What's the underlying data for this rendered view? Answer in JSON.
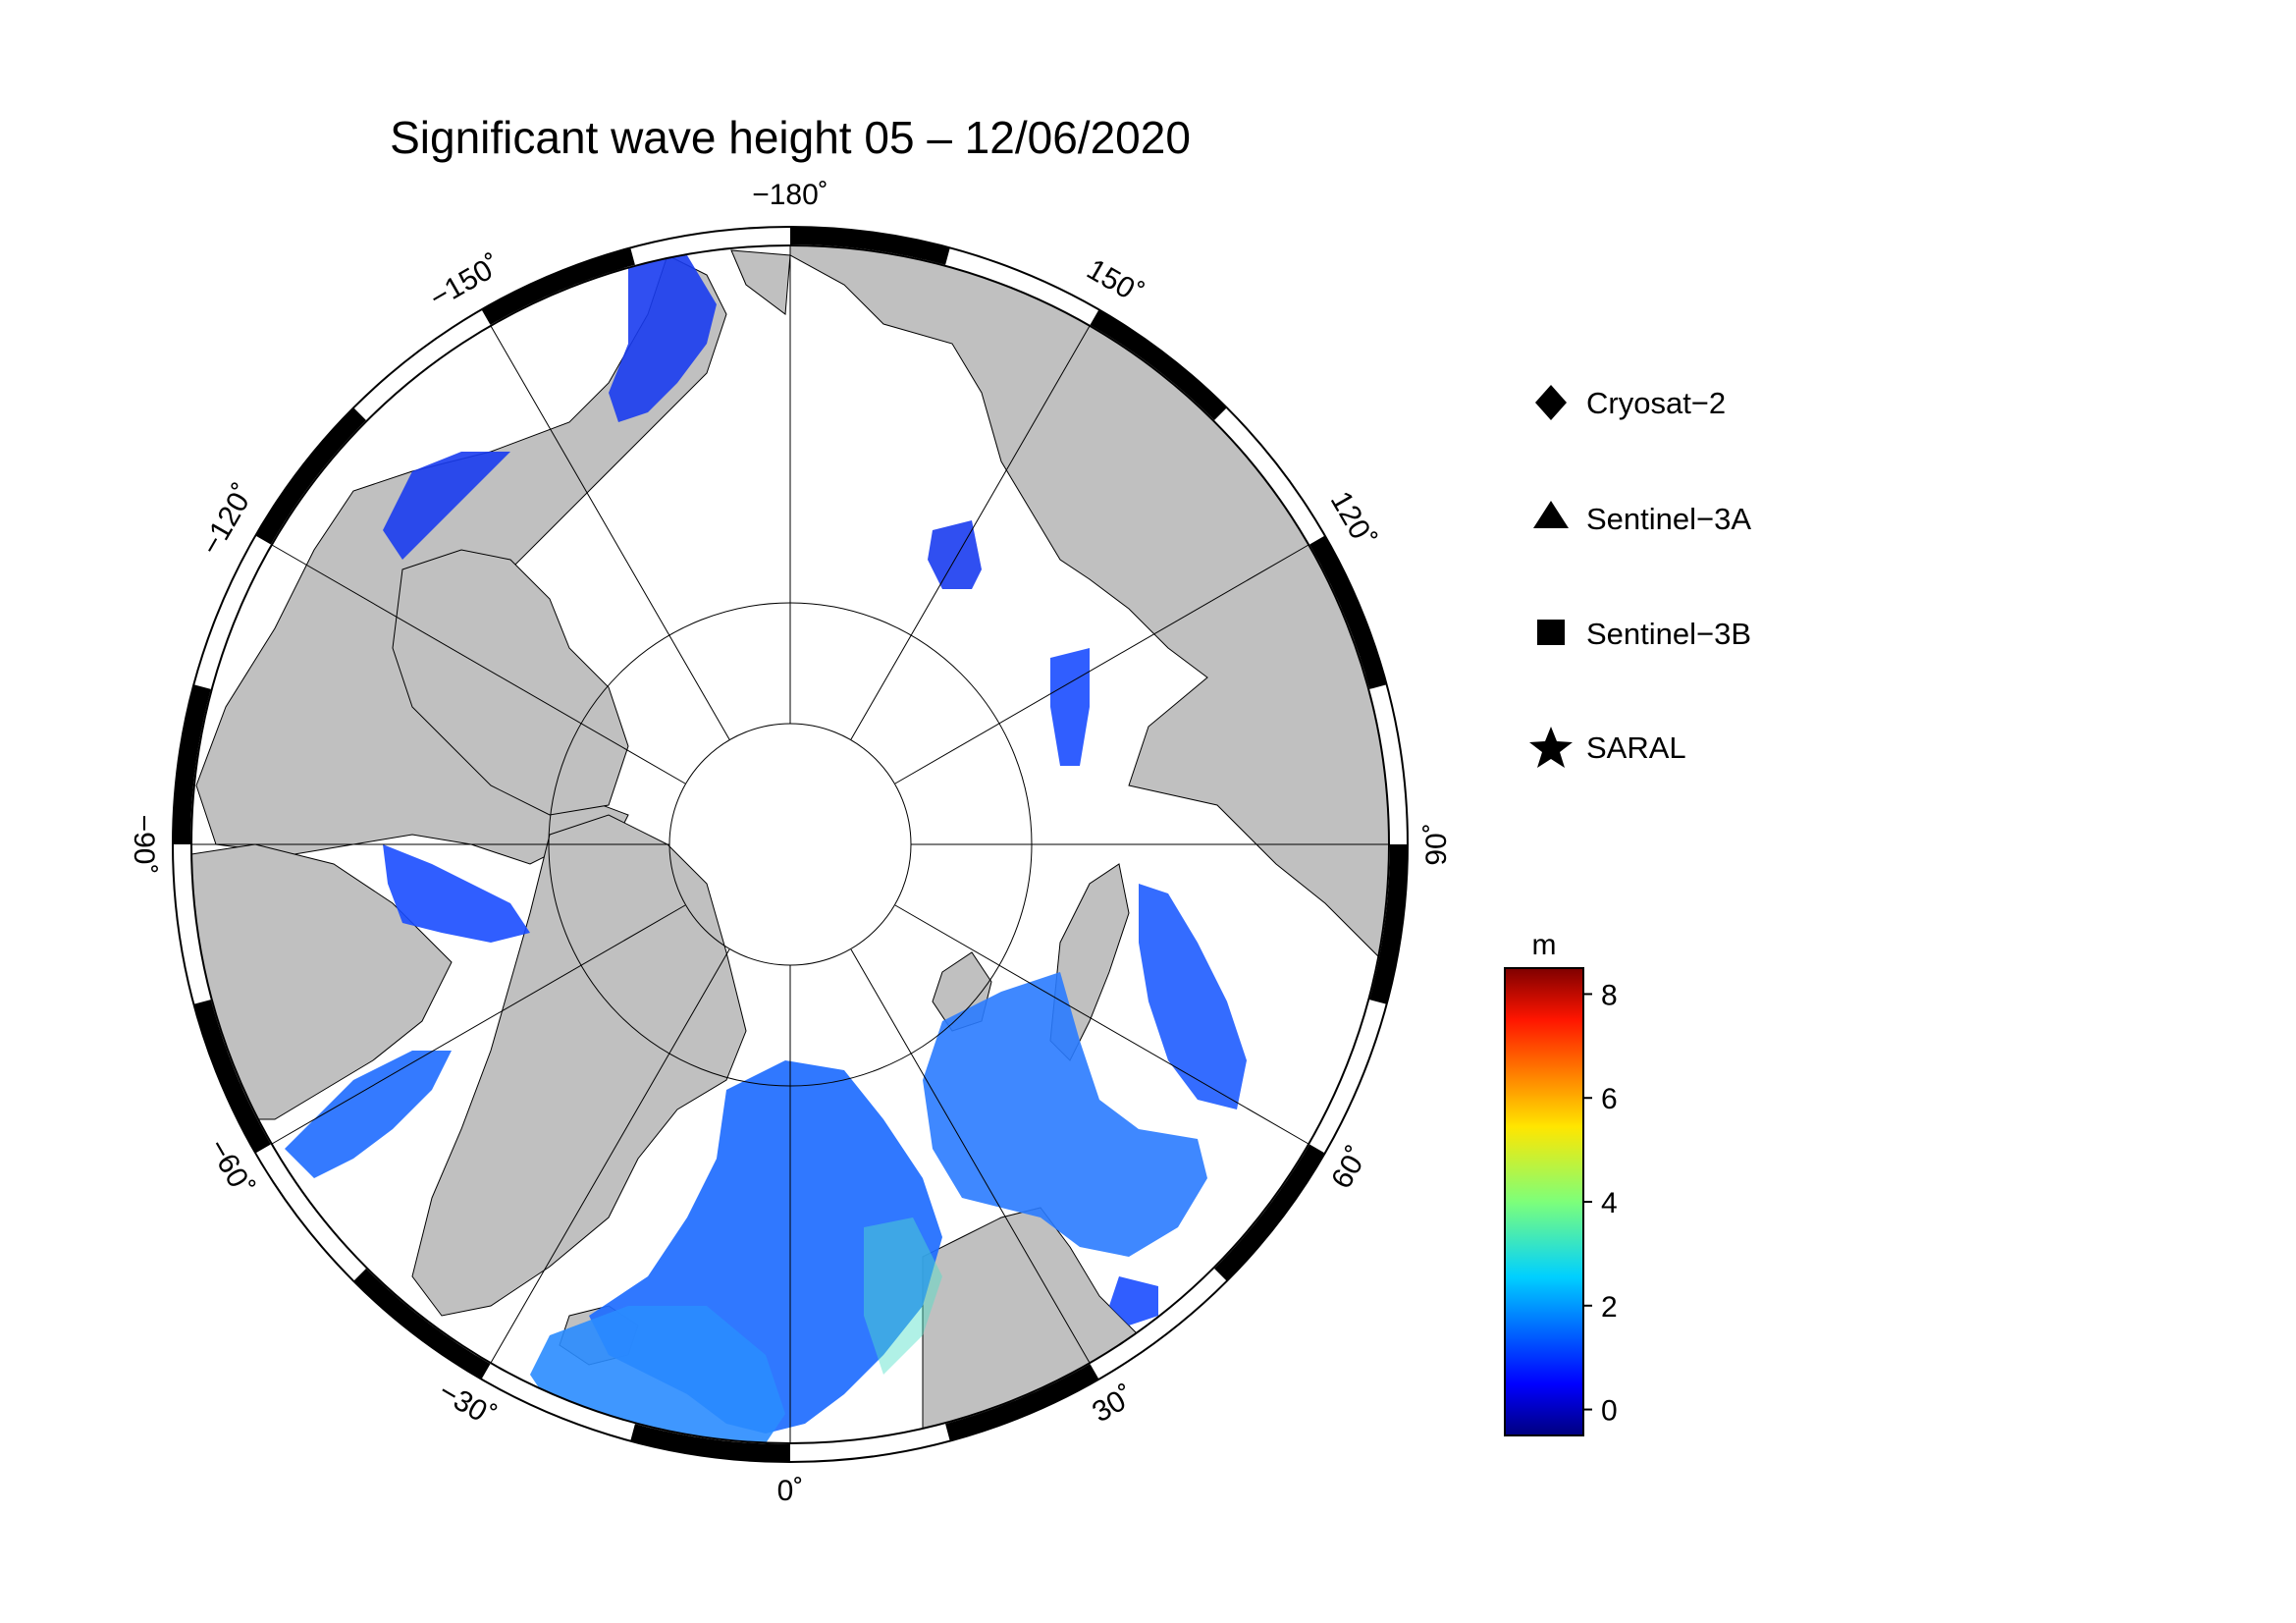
{
  "title": "Significant wave height 05 – 12/06/2020",
  "longitude_labels": [
    {
      "lon": -180,
      "text": "−180˚"
    },
    {
      "lon": 150,
      "text": "150˚"
    },
    {
      "lon": 120,
      "text": "120˚"
    },
    {
      "lon": 90,
      "text": "90˚"
    },
    {
      "lon": 60,
      "text": "60˚"
    },
    {
      "lon": 30,
      "text": "30˚"
    },
    {
      "lon": 0,
      "text": "0˚"
    },
    {
      "lon": -30,
      "text": "−30˚"
    },
    {
      "lon": -60,
      "text": "−60˚"
    },
    {
      "lon": -90,
      "text": "−90˚"
    },
    {
      "lon": -120,
      "text": "−120˚"
    },
    {
      "lon": -150,
      "text": "−150˚"
    }
  ],
  "legend": {
    "items": [
      {
        "label": "Cryosat−2",
        "marker": "diamond"
      },
      {
        "label": "Sentinel−3A",
        "marker": "triangle"
      },
      {
        "label": "Sentinel−3B",
        "marker": "square"
      },
      {
        "label": "SARAL",
        "marker": "star"
      }
    ]
  },
  "colorbar": {
    "unit": "m",
    "min": -0.5,
    "max": 8.5,
    "ticks": [
      {
        "value": 0,
        "text": "0"
      },
      {
        "value": 2,
        "text": "2"
      },
      {
        "value": 4,
        "text": "4"
      },
      {
        "value": 6,
        "text": "6"
      },
      {
        "value": 8,
        "text": "8"
      }
    ],
    "colormap": "jet"
  },
  "colors": {
    "land": "#c0c0c0",
    "ocean_ice": "#ffffff",
    "frame": "#000000"
  }
}
